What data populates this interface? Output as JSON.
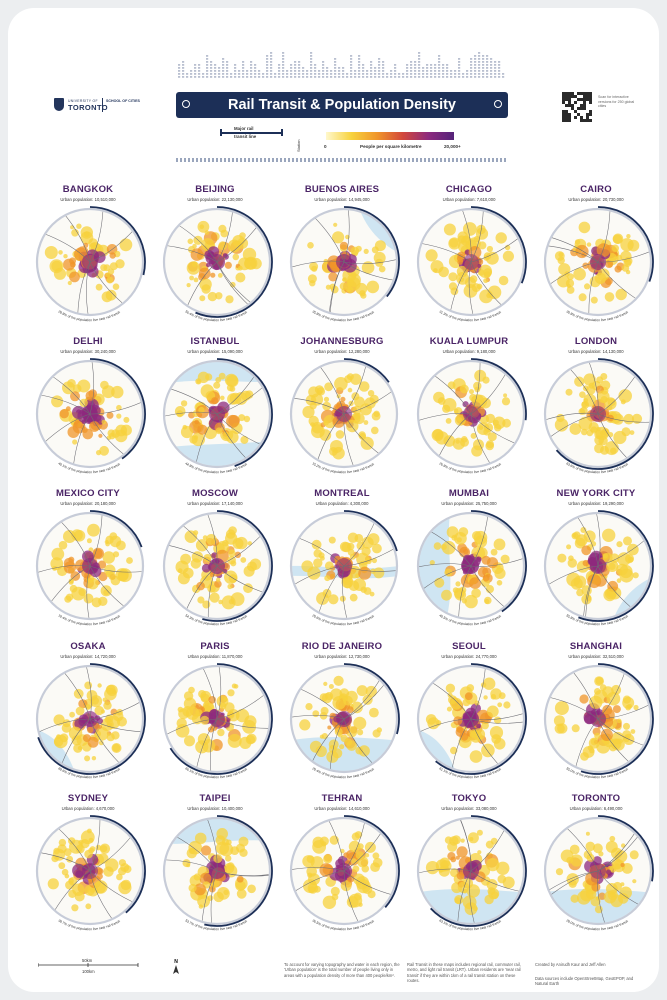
{
  "header": {
    "title": "Rail Transit & Population Density",
    "logo": {
      "university": "UNIVERSITY OF",
      "name": "TORONTO",
      "school": "SCHOOL OF CITIES"
    },
    "qr_note": "Scan for interactive versions for 250 global cities"
  },
  "legend": {
    "rail_label_1": "Major rail",
    "rail_label_2": "transit line",
    "station_label": "Station",
    "density_label": "People per square kilometre",
    "density_min": "0",
    "density_max": "20,000+"
  },
  "colors": {
    "navy": "#1c2f57",
    "purple_title": "#4a2466",
    "water": "#cfe5f2",
    "density_low": "#f7d23c",
    "density_mid": "#f0952a",
    "density_high": "#8d2a7e"
  },
  "cities": [
    {
      "name": "BANGKOK",
      "pop": "Urban population: 10,510,000",
      "pct": "28.8% of the population live near rail transit",
      "frac": 0.288,
      "w": "none",
      "hd": 0.35
    },
    {
      "name": "BEIJING",
      "pop": "Urban population: 22,130,000",
      "pct": "56.4% of the population live near rail transit",
      "frac": 0.564,
      "w": "none",
      "hd": 0.45
    },
    {
      "name": "BUENOS AIRES",
      "pop": "Urban population: 14,945,000",
      "pct": "35.8% of the population live near rail transit",
      "frac": 0.358,
      "w": "ne",
      "hd": 0.3
    },
    {
      "name": "CHICAGO",
      "pop": "Urban population: 7,610,000",
      "pct": "31.3% of the population live near rail transit",
      "frac": 0.313,
      "w": "e",
      "hd": 0.1
    },
    {
      "name": "CAIRO",
      "pop": "Urban population: 20,730,000",
      "pct": "30.8% of the population live near rail transit",
      "frac": 0.308,
      "w": "none",
      "hd": 0.4
    },
    {
      "name": "DELHI",
      "pop": "Urban population: 30,240,000",
      "pct": "40.1% of the population live near rail transit",
      "frac": 0.401,
      "w": "none",
      "hd": 0.6
    },
    {
      "name": "ISTANBUL",
      "pop": "Urban population: 15,090,000",
      "pct": "44.8% of the population live near rail transit",
      "frac": 0.448,
      "w": "ns",
      "hd": 0.35
    },
    {
      "name": "JOHANNESBURG",
      "pop": "Urban population: 12,280,000",
      "pct": "15.2% of the population live near rail transit",
      "frac": 0.152,
      "w": "none",
      "hd": 0.15
    },
    {
      "name": "KUALA LUMPUR",
      "pop": "Urban population: 9,180,000",
      "pct": "26.8% of the population live near rail transit",
      "frac": 0.268,
      "w": "none",
      "hd": 0.2
    },
    {
      "name": "LONDON",
      "pop": "Urban population: 14,130,000",
      "pct": "63.6% of the population live near rail transit",
      "frac": 0.636,
      "w": "none",
      "hd": 0.15
    },
    {
      "name": "MEXICO CITY",
      "pop": "Urban population: 20,180,000",
      "pct": "19.4% of the population live near rail transit",
      "frac": 0.194,
      "w": "none",
      "hd": 0.4
    },
    {
      "name": "MOSCOW",
      "pop": "Urban population: 17,140,000",
      "pct": "54.3% of the population live near rail transit",
      "frac": 0.543,
      "w": "none",
      "hd": 0.4
    },
    {
      "name": "MONTREAL",
      "pop": "Urban population: 4,300,000",
      "pct": "20.6% of the population live near rail transit",
      "frac": 0.206,
      "w": "river",
      "hd": 0.1
    },
    {
      "name": "MUMBAI",
      "pop": "Urban population: 25,750,000",
      "pct": "40.5% of the population live near rail transit",
      "frac": 0.405,
      "w": "w",
      "hd": 0.7
    },
    {
      "name": "NEW YORK CITY",
      "pop": "Urban population: 19,290,000",
      "pct": "55.8% of the population live near rail transit",
      "frac": 0.558,
      "w": "se",
      "hd": 0.3
    },
    {
      "name": "OSAKA",
      "pop": "Urban population: 14,720,000",
      "pct": "69.6% of the population live near rail transit",
      "frac": 0.696,
      "w": "sw",
      "hd": 0.25
    },
    {
      "name": "PARIS",
      "pop": "Urban population: 11,870,000",
      "pct": "66.1% of the population live near rail transit",
      "frac": 0.661,
      "w": "none",
      "hd": 0.35
    },
    {
      "name": "RIO DE JANEIRO",
      "pop": "Urban population: 12,730,000",
      "pct": "29.4% of the population live near rail transit",
      "frac": 0.294,
      "w": "s",
      "hd": 0.2
    },
    {
      "name": "SEOUL",
      "pop": "Urban population: 24,770,000",
      "pct": "61.1% of the population live near rail transit",
      "frac": 0.611,
      "w": "sw",
      "hd": 0.55
    },
    {
      "name": "SHANGHAI",
      "pop": "Urban population: 32,510,000",
      "pct": "55.0% of the population live near rail transit",
      "frac": 0.55,
      "w": "e",
      "hd": 0.35
    },
    {
      "name": "SYDNEY",
      "pop": "Urban population: 4,670,000",
      "pct": "38.7% of the population live near rail transit",
      "frac": 0.387,
      "w": "e",
      "hd": 0.1
    },
    {
      "name": "TAIPEI",
      "pop": "Urban population: 10,400,000",
      "pct": "53.7% of the population live near rail transit",
      "frac": 0.537,
      "w": "n",
      "hd": 0.4
    },
    {
      "name": "TEHRAN",
      "pop": "Urban population: 14,610,000",
      "pct": "36.5% of the population live near rail transit",
      "frac": 0.365,
      "w": "none",
      "hd": 0.45
    },
    {
      "name": "TOKYO",
      "pop": "Urban population: 33,080,000",
      "pct": "63.1% of the population live near rail transit",
      "frac": 0.631,
      "w": "s",
      "hd": 0.35
    },
    {
      "name": "TORONTO",
      "pop": "Urban population: 6,490,000",
      "pct": "28.0% of the population live near rail transit",
      "frac": 0.28,
      "w": "s",
      "hd": 0.15
    }
  ],
  "footer": {
    "scale_1": "50km",
    "scale_2": "100km",
    "north": "N",
    "note_1": "To account for varying topography and water in each region, the 'Urban population' is the total number of people living only in areas with a population density of more than 400 people/km².",
    "note_2": "Rail Transit in these maps includes regional rail, commuter rail, metro, and light rail transit (LRT). Urban residents are 'near rail transit' if they are within 1km of a rail transit station on these routes.",
    "note_3": "Created by Anirudh Kaur and Jeff Allen",
    "note_4": "Data sources include OpenStreetMap, GeoEPOP, and Natural Earth"
  }
}
